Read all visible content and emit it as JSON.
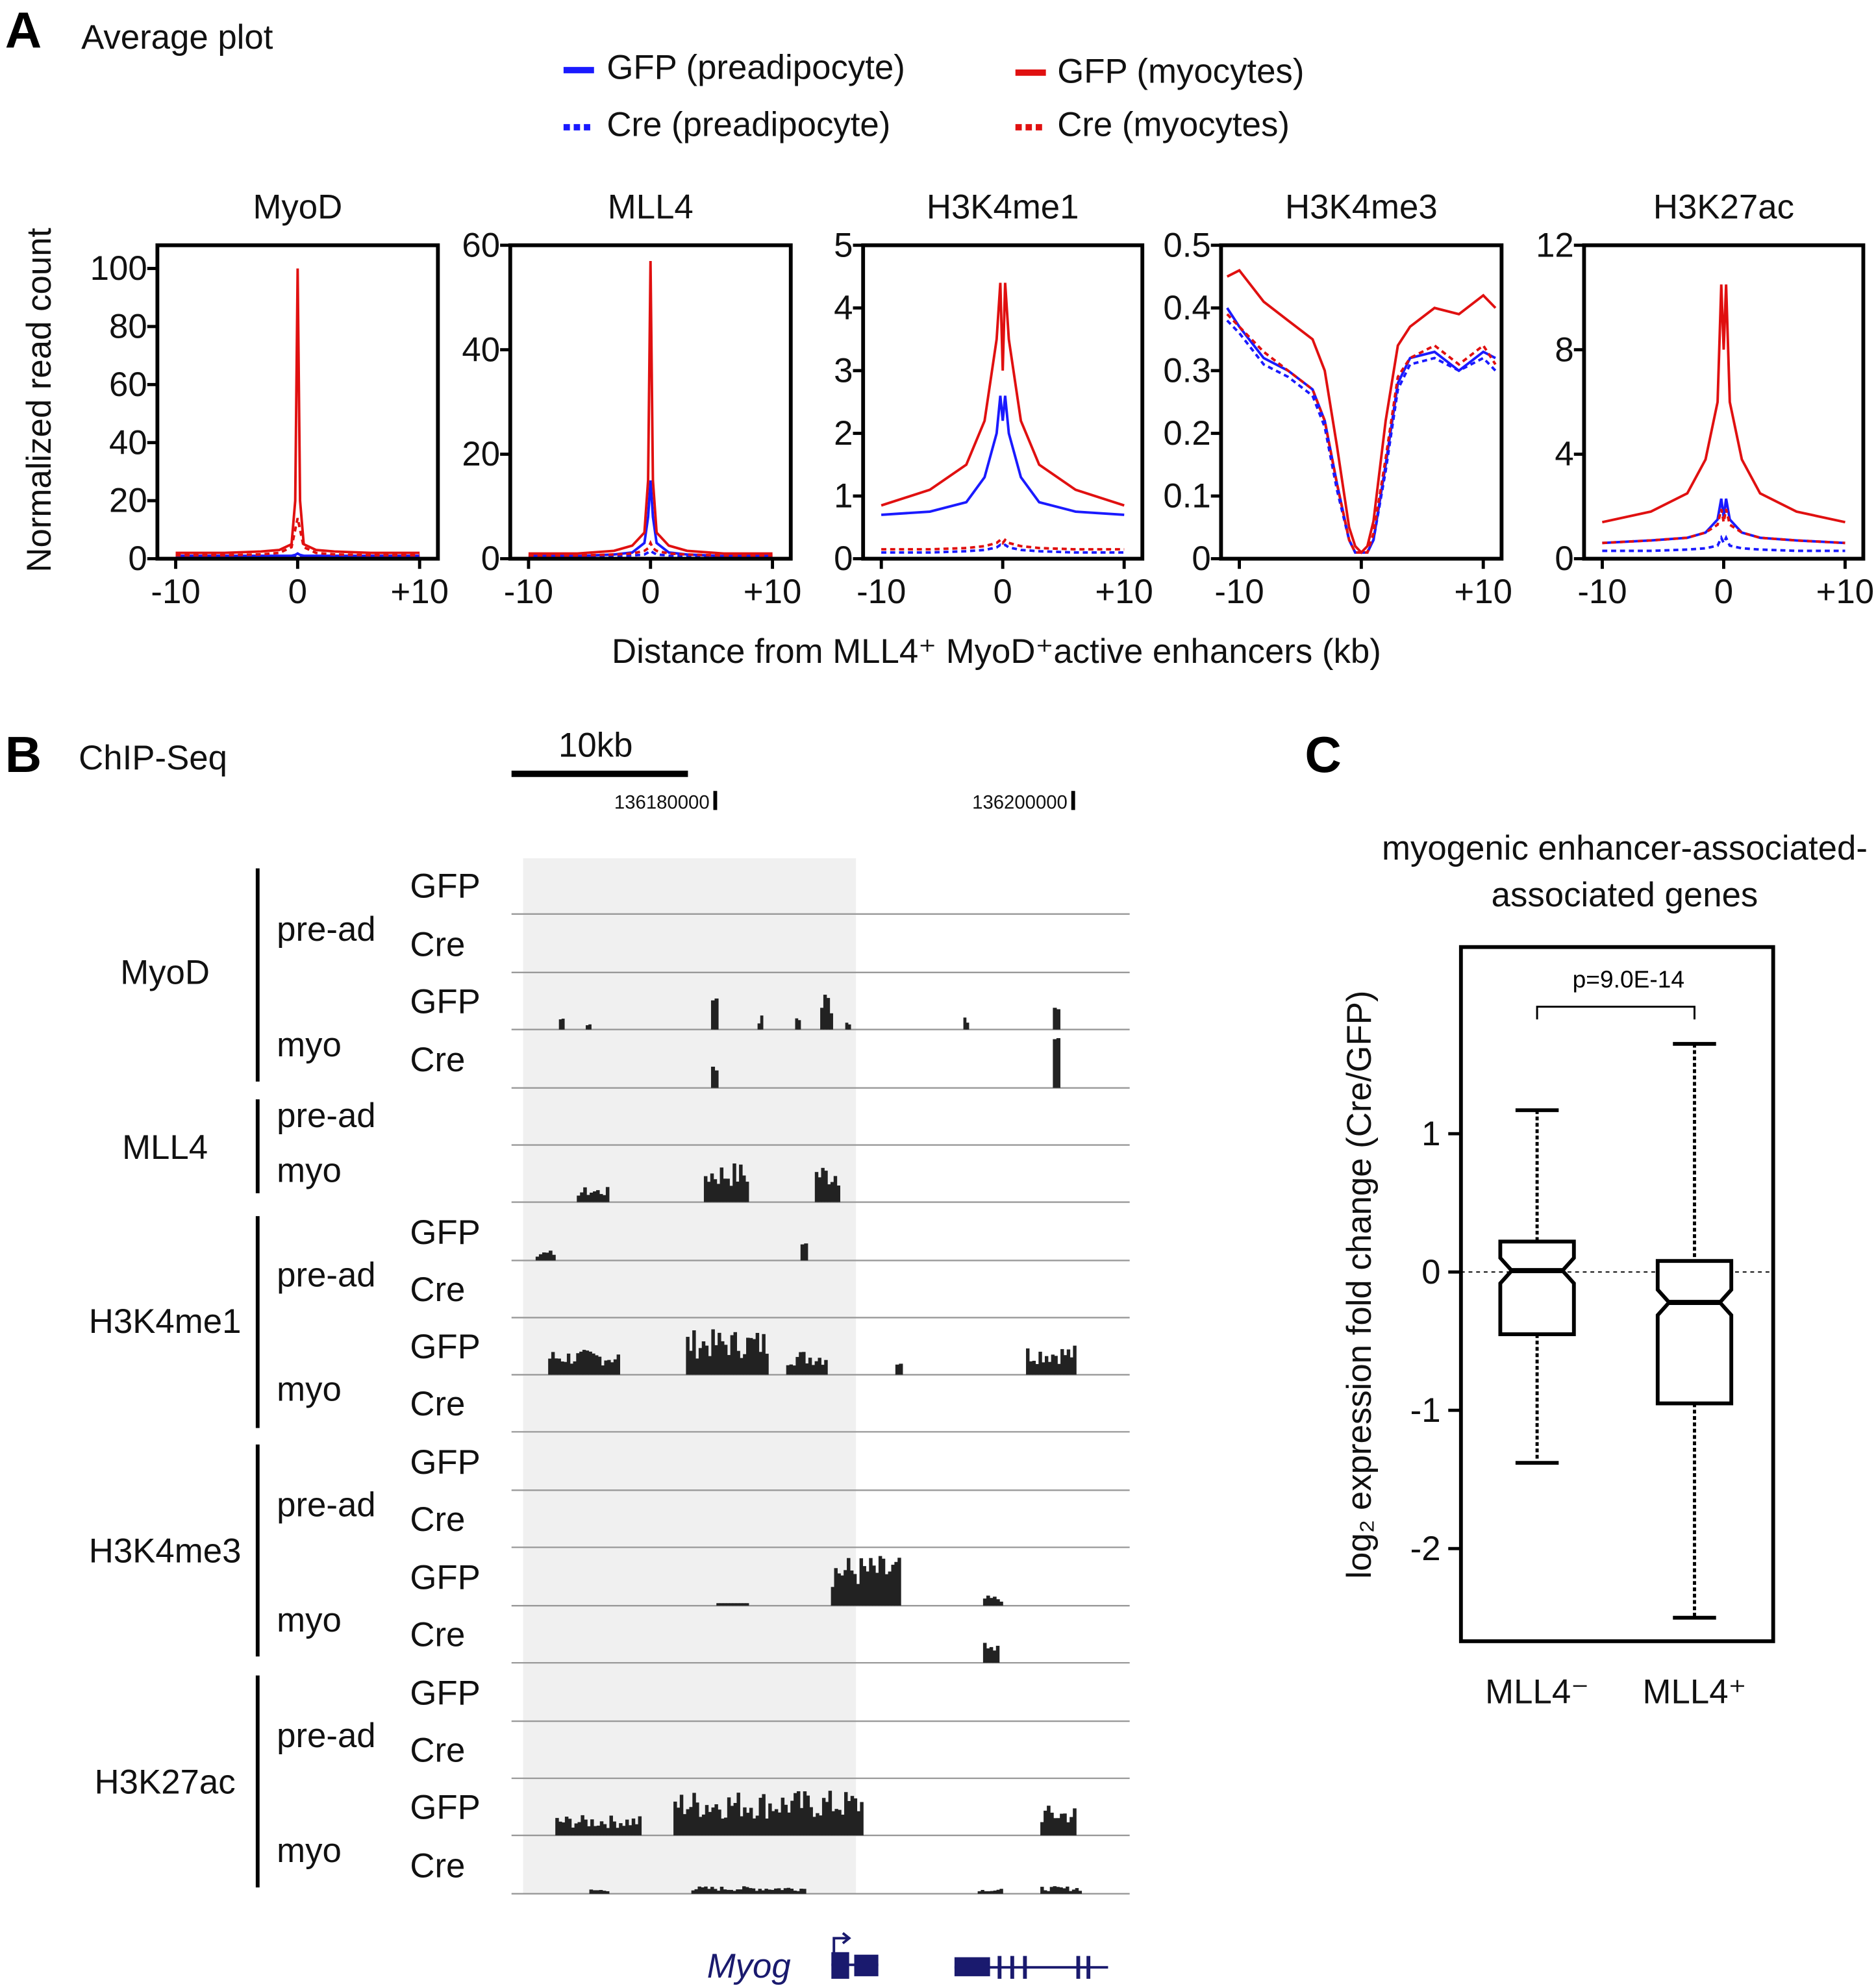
{
  "panels": {
    "a": "A",
    "b": "B",
    "c": "C"
  },
  "panel_a": {
    "title": "Average plot",
    "legend": [
      {
        "label": "GFP (preadipocyte)",
        "color": "#1a1aff",
        "dash": false
      },
      {
        "label": "Cre (preadipocyte)",
        "color": "#1a1aff",
        "dash": true
      },
      {
        "label": "GFP (myocytes)",
        "color": "#e01010",
        "dash": false
      },
      {
        "label": "Cre (myocytes)",
        "color": "#e01010",
        "dash": true
      }
    ],
    "ylabel": "Normalized read count",
    "xlabel": "Distance from MLL4⁺ MyoD⁺active enhancers (kb)",
    "xtick_labels": [
      "-10",
      "0",
      "+10"
    ]
  },
  "chart_data": [
    {
      "type": "line",
      "title": "MyoD",
      "xlim": [
        -11.5,
        11.5
      ],
      "ylim": [
        0,
        108
      ],
      "yticks": [
        0,
        20,
        40,
        60,
        80,
        100
      ],
      "ytick_labels": [
        "0",
        "20",
        "40",
        "60",
        "80",
        "100"
      ],
      "x": [
        -10,
        -6,
        -3,
        -1.5,
        -0.5,
        -0.2,
        0,
        0.2,
        0.5,
        1.5,
        3,
        6,
        10
      ],
      "series": [
        {
          "name": "GFP (preadipocyte)",
          "values": [
            1,
            1,
            1,
            1,
            1,
            1.3,
            1.8,
            1.3,
            1,
            1,
            1,
            1,
            1
          ]
        },
        {
          "name": "Cre (preadipocyte)",
          "values": [
            0.8,
            0.8,
            0.8,
            0.8,
            0.8,
            0.9,
            1,
            0.9,
            0.8,
            0.8,
            0.8,
            0.8,
            0.8
          ]
        },
        {
          "name": "GFP (myocytes)",
          "values": [
            2,
            2,
            2.5,
            3,
            5,
            20,
            100,
            20,
            5,
            3,
            2.5,
            2,
            2
          ]
        },
        {
          "name": "Cre (myocytes)",
          "values": [
            1.2,
            1.2,
            1.5,
            2,
            4,
            10,
            14,
            10,
            4,
            2,
            1.5,
            1.2,
            1.2
          ]
        }
      ]
    },
    {
      "type": "line",
      "title": "MLL4",
      "xlim": [
        -11.5,
        11.5
      ],
      "ylim": [
        0,
        60
      ],
      "yticks": [
        0,
        20,
        40,
        60
      ],
      "ytick_labels": [
        "0",
        "20",
        "40",
        "60"
      ],
      "x": [
        -10,
        -6,
        -3,
        -1.5,
        -0.5,
        -0.2,
        0,
        0.2,
        0.5,
        1.5,
        3,
        6,
        10
      ],
      "series": [
        {
          "name": "GFP (preadipocyte)",
          "values": [
            0.5,
            0.5,
            0.8,
            1.2,
            3,
            8,
            15,
            8,
            3,
            1.2,
            0.8,
            0.5,
            0.5
          ]
        },
        {
          "name": "Cre (preadipocyte)",
          "values": [
            0.4,
            0.4,
            0.5,
            0.6,
            0.8,
            1.2,
            1.5,
            1.2,
            0.8,
            0.6,
            0.5,
            0.4,
            0.4
          ]
        },
        {
          "name": "GFP (myocytes)",
          "values": [
            1,
            1,
            1.5,
            2.5,
            5,
            15,
            57,
            15,
            5,
            2.5,
            1.5,
            1,
            1
          ]
        },
        {
          "name": "Cre (myocytes)",
          "values": [
            0.6,
            0.6,
            0.8,
            1,
            1.5,
            2,
            3,
            2,
            1.5,
            1,
            0.8,
            0.6,
            0.6
          ]
        }
      ]
    },
    {
      "type": "line",
      "title": "H3K4me1",
      "xlim": [
        -11.5,
        11.5
      ],
      "ylim": [
        0,
        5
      ],
      "yticks": [
        0,
        1,
        2,
        3,
        4,
        5
      ],
      "ytick_labels": [
        "0",
        "1",
        "2",
        "3",
        "4",
        "5"
      ],
      "x": [
        -10,
        -6,
        -3,
        -1.5,
        -0.5,
        -0.2,
        0,
        0.2,
        0.5,
        1.5,
        3,
        6,
        10
      ],
      "series": [
        {
          "name": "GFP (preadipocyte)",
          "values": [
            0.7,
            0.75,
            0.9,
            1.3,
            2,
            2.6,
            2.2,
            2.6,
            2,
            1.3,
            0.9,
            0.75,
            0.7
          ]
        },
        {
          "name": "Cre (preadipocyte)",
          "values": [
            0.1,
            0.1,
            0.12,
            0.14,
            0.18,
            0.22,
            0.2,
            0.22,
            0.18,
            0.14,
            0.12,
            0.1,
            0.1
          ]
        },
        {
          "name": "GFP (myocytes)",
          "values": [
            0.85,
            1.1,
            1.5,
            2.2,
            3.5,
            4.4,
            3.0,
            4.4,
            3.5,
            2.2,
            1.5,
            1.1,
            0.85
          ]
        },
        {
          "name": "Cre (myocytes)",
          "values": [
            0.15,
            0.15,
            0.17,
            0.2,
            0.25,
            0.3,
            0.25,
            0.3,
            0.25,
            0.2,
            0.17,
            0.15,
            0.15
          ]
        }
      ]
    },
    {
      "type": "line",
      "title": "H3K4me3",
      "xlim": [
        -11.5,
        11.5
      ],
      "ylim": [
        0,
        0.5
      ],
      "yticks": [
        0,
        0.1,
        0.2,
        0.3,
        0.4,
        0.5
      ],
      "ytick_labels": [
        "0",
        "0.1",
        "0.2",
        "0.3",
        "0.4",
        "0.5"
      ],
      "x": [
        -11,
        -10,
        -8,
        -6,
        -4,
        -3,
        -2,
        -1,
        -0.5,
        0,
        0.5,
        1,
        2,
        3,
        4,
        6,
        8,
        10,
        11
      ],
      "series": [
        {
          "name": "GFP (preadipocyte)",
          "values": [
            0.4,
            0.37,
            0.32,
            0.3,
            0.27,
            0.22,
            0.12,
            0.03,
            0.01,
            0.01,
            0.01,
            0.03,
            0.15,
            0.28,
            0.32,
            0.33,
            0.3,
            0.33,
            0.32
          ]
        },
        {
          "name": "Cre (preadipocyte)",
          "values": [
            0.38,
            0.36,
            0.31,
            0.29,
            0.26,
            0.21,
            0.11,
            0.03,
            0.01,
            0.01,
            0.01,
            0.03,
            0.14,
            0.27,
            0.31,
            0.32,
            0.3,
            0.32,
            0.3
          ]
        },
        {
          "name": "GFP (myocytes)",
          "values": [
            0.45,
            0.46,
            0.41,
            0.38,
            0.35,
            0.3,
            0.18,
            0.05,
            0.02,
            0.01,
            0.02,
            0.06,
            0.22,
            0.34,
            0.37,
            0.4,
            0.39,
            0.42,
            0.4
          ]
        },
        {
          "name": "Cre (myocytes)",
          "values": [
            0.39,
            0.37,
            0.33,
            0.3,
            0.27,
            0.22,
            0.12,
            0.03,
            0.01,
            0.01,
            0.01,
            0.04,
            0.16,
            0.29,
            0.32,
            0.34,
            0.31,
            0.34,
            0.31
          ]
        }
      ]
    },
    {
      "type": "line",
      "title": "H3K27ac",
      "xlim": [
        -11.5,
        11.5
      ],
      "ylim": [
        0,
        12
      ],
      "yticks": [
        0,
        4,
        8,
        12
      ],
      "ytick_labels": [
        "0",
        "4",
        "8",
        "12"
      ],
      "x": [
        -10,
        -6,
        -3,
        -1.5,
        -0.5,
        -0.2,
        0,
        0.2,
        0.5,
        1.5,
        3,
        6,
        10
      ],
      "series": [
        {
          "name": "GFP (preadipocyte)",
          "values": [
            0.6,
            0.7,
            0.8,
            1,
            1.5,
            2.3,
            1.6,
            2.3,
            1.5,
            1,
            0.8,
            0.7,
            0.6
          ]
        },
        {
          "name": "Cre (preadipocyte)",
          "values": [
            0.3,
            0.3,
            0.35,
            0.4,
            0.5,
            0.8,
            0.6,
            0.8,
            0.5,
            0.4,
            0.35,
            0.3,
            0.3
          ]
        },
        {
          "name": "GFP (myocytes)",
          "values": [
            1.4,
            1.8,
            2.5,
            3.8,
            6,
            10.5,
            8,
            10.5,
            6,
            3.8,
            2.5,
            1.8,
            1.4
          ]
        },
        {
          "name": "Cre (myocytes)",
          "values": [
            0.6,
            0.7,
            0.8,
            1,
            1.3,
            1.9,
            1.4,
            1.9,
            1.3,
            1,
            0.8,
            0.7,
            0.6
          ]
        }
      ]
    },
    {
      "type": "box",
      "title": "myogenic enhancer-associated genes",
      "ylabel": "log₂ expression fold change (Cre/GFP)",
      "ylim": [
        -2.67,
        2.35
      ],
      "yticks": [
        -2,
        -1,
        0,
        1
      ],
      "ytick_labels": [
        "-2",
        "-1",
        "0",
        "1"
      ],
      "categories": [
        "MLL4⁻",
        "MLL4⁺"
      ],
      "boxes": [
        {
          "whisker_high": 1.17,
          "q3": 0.22,
          "median": 0.01,
          "q1": -0.45,
          "whisker_low": -1.38
        },
        {
          "whisker_high": 1.65,
          "q3": 0.08,
          "median": -0.22,
          "q1": -0.95,
          "whisker_low": -2.5
        }
      ],
      "annotation": "p=9.0E-14",
      "reference_line": 0
    }
  ],
  "panel_b": {
    "title": "ChIP-Seq",
    "scale_bar": "10kb",
    "coords": [
      {
        "label": "136180000",
        "kb": 136180
      },
      {
        "label": "136200000",
        "kb": 136200
      }
    ],
    "gene": "Myog",
    "groups": [
      {
        "name": "MyoD",
        "subgroups": [
          {
            "name": "pre-ad",
            "samples": [
              "GFP",
              "Cre"
            ]
          },
          {
            "name": "myo",
            "samples": [
              "GFP",
              "Cre"
            ]
          }
        ]
      },
      {
        "name": "MLL4",
        "subgroups": [
          {
            "name": "pre-ad",
            "samples": [
              ""
            ]
          },
          {
            "name": "myo",
            "samples": [
              ""
            ]
          }
        ]
      },
      {
        "name": "H3K4me1",
        "subgroups": [
          {
            "name": "pre-ad",
            "samples": [
              "GFP",
              "Cre"
            ]
          },
          {
            "name": "myo",
            "samples": [
              "GFP",
              "Cre"
            ]
          }
        ]
      },
      {
        "name": "H3K4me3",
        "subgroups": [
          {
            "name": "pre-ad",
            "samples": [
              "GFP",
              "Cre"
            ]
          },
          {
            "name": "myo",
            "samples": [
              "GFP",
              "Cre"
            ]
          }
        ]
      },
      {
        "name": "H3K27ac",
        "subgroups": [
          {
            "name": "pre-ad",
            "samples": [
              "GFP",
              "Cre"
            ]
          },
          {
            "name": "myo",
            "samples": [
              "GFP",
              "Cre"
            ]
          }
        ]
      }
    ],
    "tracks": [
      [],
      [],
      [
        [
          136171.3,
          136171.6,
          0.3
        ],
        [
          136172.8,
          136173.1,
          0.2
        ],
        [
          136179.8,
          136180.2,
          0.9
        ],
        [
          136182.4,
          136182.7,
          0.3
        ],
        [
          136184.5,
          136184.8,
          0.3
        ],
        [
          136185.9,
          136186.6,
          0.8
        ],
        [
          136187.3,
          136187.6,
          0.2
        ],
        [
          136193.9,
          136194.2,
          0.3
        ],
        [
          136198.9,
          136199.3,
          0.6
        ]
      ],
      [
        [
          136179.8,
          136180.2,
          0.9
        ],
        [
          136198.9,
          136199.3,
          1.0
        ]
      ],
      [],
      [
        [
          136172.3,
          136174.1,
          0.3
        ],
        [
          136179.4,
          136181.9,
          0.8
        ],
        [
          136185.6,
          136187.0,
          0.8
        ]
      ],
      [
        [
          136170.0,
          136171.1,
          0.2
        ],
        [
          136184.8,
          136185.2,
          0.5
        ]
      ],
      [],
      [
        [
          136170.7,
          136174.7,
          0.5
        ],
        [
          136178.4,
          136183.0,
          0.9
        ],
        [
          136184.0,
          136186.3,
          0.5
        ],
        [
          136190.1,
          136190.5,
          0.4
        ],
        [
          136197.4,
          136200.2,
          0.6
        ]
      ],
      [],
      [],
      [],
      [
        [
          136180.1,
          136181.9,
          0.05
        ],
        [
          136186.5,
          136190.4,
          1.0
        ],
        [
          136195.0,
          136196.1,
          0.2
        ]
      ],
      [
        [
          136195.0,
          136195.9,
          0.4
        ]
      ],
      [],
      [],
      [
        [
          136171.1,
          136175.9,
          0.4
        ],
        [
          136177.7,
          136188.3,
          0.9
        ],
        [
          136198.2,
          136200.2,
          0.6
        ]
      ],
      [
        [
          136173.0,
          136174.1,
          0.1
        ],
        [
          136178.7,
          136185.1,
          0.15
        ],
        [
          136194.7,
          136196.1,
          0.1
        ],
        [
          136198.2,
          136200.5,
          0.15
        ]
      ]
    ],
    "highlight_kb": [
      136169.3,
      136187.9
    ]
  }
}
